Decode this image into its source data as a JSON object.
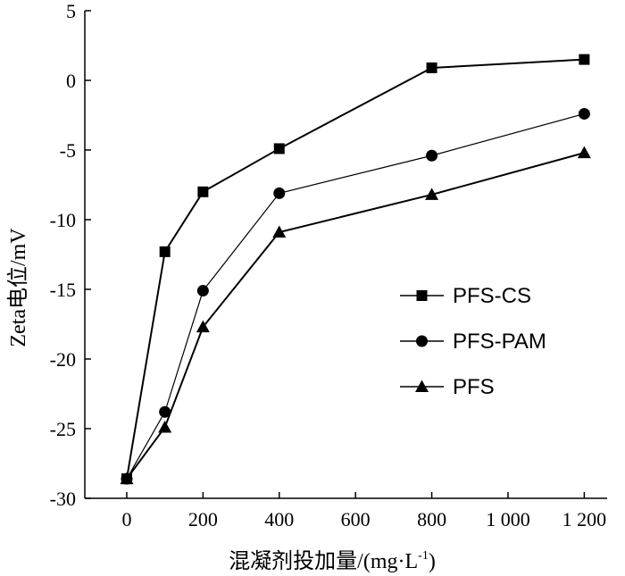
{
  "chart_data": {
    "type": "line",
    "title": "",
    "xlabel_main": "混凝剂投加量/(mg·L",
    "xlabel_sup": "-1",
    "xlabel_end": ")",
    "ylabel": "Zeta电位/mV",
    "x": [
      0,
      100,
      200,
      400,
      800,
      1200
    ],
    "xticks": [
      0,
      200,
      400,
      600,
      800,
      1000,
      1200
    ],
    "xtick_labels": [
      "0",
      "200",
      "400",
      "600",
      "800",
      "1 000",
      "1 200"
    ],
    "xlim": [
      -110,
      1260
    ],
    "yticks": [
      5,
      0,
      -5,
      -10,
      -15,
      -20,
      -25,
      -30
    ],
    "ytick_labels": [
      "5",
      "0",
      "-5",
      "-10",
      "-15",
      "-20",
      "-25",
      "-30"
    ],
    "ylim": [
      -30,
      5
    ],
    "grid": false,
    "legend_position": "center-right",
    "series": [
      {
        "name": "PFS-CS",
        "marker": "square",
        "values": [
          -28.6,
          -12.3,
          -8.0,
          -4.9,
          0.9,
          1.5
        ]
      },
      {
        "name": "PFS-PAM",
        "marker": "circle",
        "values": [
          -28.6,
          -23.8,
          -15.1,
          -8.1,
          -5.4,
          -2.4
        ]
      },
      {
        "name": "PFS",
        "marker": "triangle",
        "values": [
          -28.6,
          -24.9,
          -17.7,
          -10.9,
          -8.2,
          -5.2
        ]
      }
    ]
  }
}
